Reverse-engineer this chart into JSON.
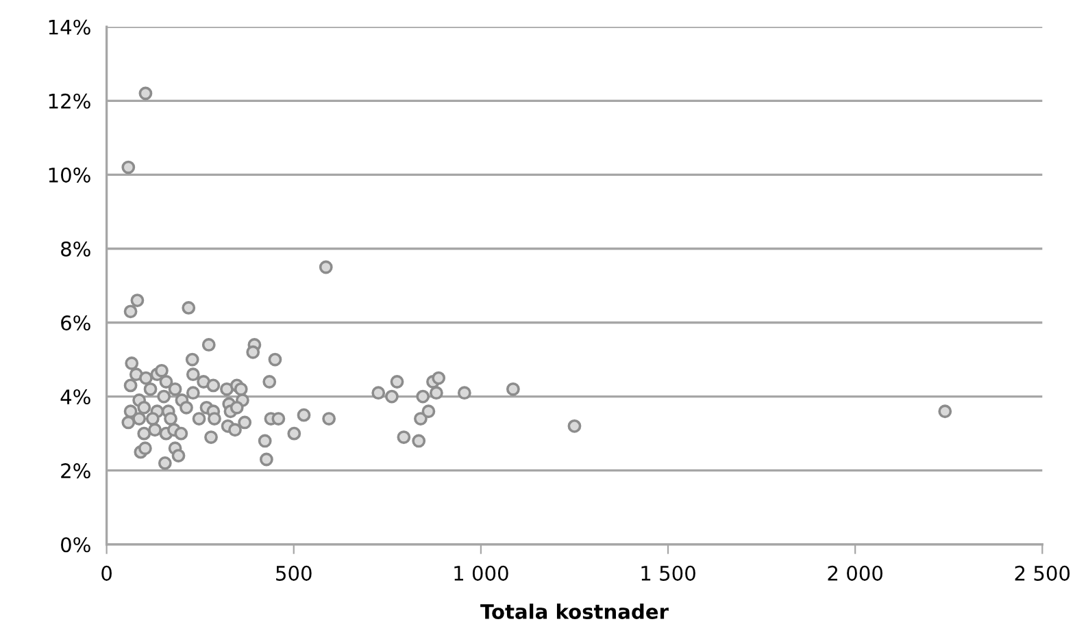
{
  "chart_data": {
    "type": "scatter",
    "xlabel": "Totala kostnader",
    "xlim": [
      0,
      2500
    ],
    "xticks": [
      {
        "value": 0,
        "label": "0"
      },
      {
        "value": 500,
        "label": "500"
      },
      {
        "value": 1000,
        "label": "1 000"
      },
      {
        "value": 1500,
        "label": "1 500"
      },
      {
        "value": 2000,
        "label": "2 000"
      },
      {
        "value": 2500,
        "label": "2 500"
      }
    ],
    "ylim": [
      0,
      14
    ],
    "yticks": [
      {
        "value": 0,
        "label": "0%"
      },
      {
        "value": 2,
        "label": "2%"
      },
      {
        "value": 4,
        "label": "4%"
      },
      {
        "value": 6,
        "label": "6%"
      },
      {
        "value": 8,
        "label": "8%"
      },
      {
        "value": 10,
        "label": "10%"
      },
      {
        "value": 12,
        "label": "12%"
      },
      {
        "value": 14,
        "label": "14%"
      }
    ],
    "grid": "y",
    "marker": "circle",
    "series": [
      {
        "color": "#d9d9d9",
        "x": [
          58,
          104,
          586,
          64,
          82,
          219,
          273,
          395,
          391,
          450,
          229,
          435,
          67,
          79,
          105,
          135,
          147,
          159,
          64,
          231,
          259,
          285,
          321,
          348,
          359,
          183,
          117,
          231,
          201,
          87,
          153,
          64,
          100,
          135,
          165,
          213,
          267,
          285,
          327,
          363,
          331,
          348,
          58,
          87,
          123,
          171,
          247,
          288,
          324,
          343,
          369,
          100,
          129,
          159,
          180,
          199,
          279,
          91,
          103,
          183,
          192,
          156,
          423,
          427,
          439,
          459,
          501,
          527,
          594,
          726,
          762,
          776,
          794,
          834,
          839,
          845,
          860,
          872,
          887,
          881,
          956,
          1086,
          1250,
          2240
        ],
        "values": [
          10.2,
          12.2,
          7.5,
          6.3,
          6.6,
          6.4,
          5.4,
          5.4,
          5.2,
          5.0,
          5.0,
          4.4,
          4.9,
          4.6,
          4.5,
          4.6,
          4.7,
          4.4,
          4.3,
          4.6,
          4.4,
          4.3,
          4.2,
          4.3,
          4.2,
          4.2,
          4.2,
          4.1,
          3.9,
          3.9,
          4.0,
          3.6,
          3.7,
          3.6,
          3.6,
          3.7,
          3.7,
          3.6,
          3.8,
          3.9,
          3.6,
          3.7,
          3.3,
          3.4,
          3.4,
          3.4,
          3.4,
          3.4,
          3.2,
          3.1,
          3.3,
          3.0,
          3.1,
          3.0,
          3.1,
          3.0,
          2.9,
          2.5,
          2.6,
          2.6,
          2.4,
          2.2,
          2.8,
          2.3,
          3.4,
          3.4,
          3.0,
          3.5,
          3.4,
          4.1,
          4.0,
          4.4,
          2.9,
          2.8,
          3.4,
          4.0,
          3.6,
          4.4,
          4.5,
          4.1,
          4.1,
          4.2,
          3.2,
          3.6
        ]
      }
    ]
  }
}
